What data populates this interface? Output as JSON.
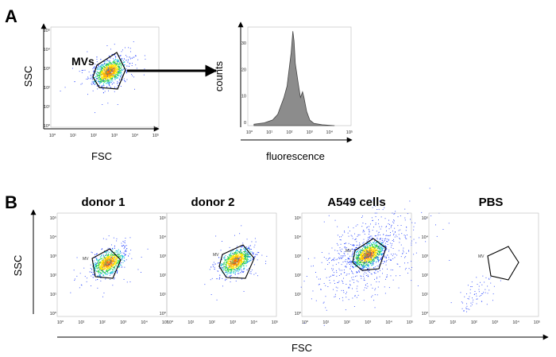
{
  "panels": {
    "A": {
      "label": "A",
      "scatter": {
        "xlabel": "FSC",
        "ylabel": "SSC",
        "gate_label": "MVs",
        "ticks": [
          "10⁰",
          "10¹",
          "10²",
          "10³",
          "10⁴",
          "10⁵"
        ]
      },
      "histogram": {
        "xlabel": "fluorescence",
        "ylabel": "counts",
        "x_ticks": [
          "10⁰",
          "10¹",
          "10²",
          "10³",
          "10⁴",
          "10⁵"
        ],
        "y_ticks": [
          "0",
          "10",
          "20",
          "30"
        ]
      }
    },
    "B": {
      "label": "B",
      "ylabel": "SSC",
      "xlabel": "FSC",
      "gate_label": "MV",
      "ticks": [
        "10⁰",
        "10¹",
        "10²",
        "10³",
        "10⁴",
        "10⁵"
      ],
      "plots": [
        {
          "title": "donor 1"
        },
        {
          "title": "donor 2"
        },
        {
          "title": "A549 cells"
        },
        {
          "title": "PBS"
        }
      ]
    }
  },
  "colors": {
    "density_high": "#ff3b00",
    "density_mid": "#ffe600",
    "density_low": "#2bd34a",
    "sparse": "#1e3cff",
    "histogram_fill": "#8c8c8c"
  }
}
